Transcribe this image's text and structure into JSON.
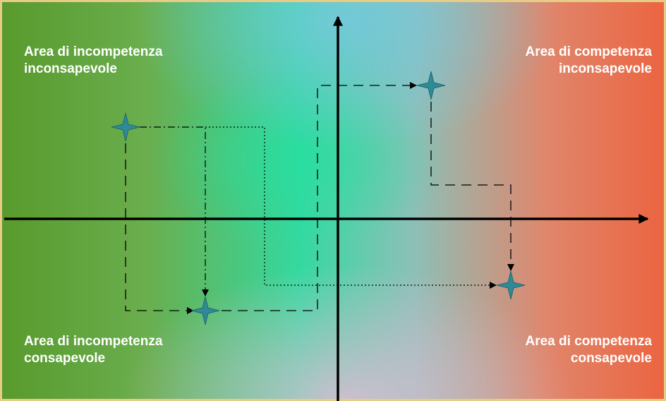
{
  "quadrants": {
    "top_left": {
      "line1": "Area di incompetenza",
      "line2": "inconsapevole"
    },
    "top_right": {
      "line1": "Area di competenza",
      "line2": "inconsapevole"
    },
    "bottom_left": {
      "line1": "Area di incompetenza",
      "line2": "consapevole"
    },
    "bottom_right": {
      "line1": "Area di competenza",
      "line2": "consapevole"
    }
  },
  "colors": {
    "left_green": "#5a9c2a",
    "center_teal": "#2ee0a0",
    "top_center_cyan": "#6fd0d8",
    "right_orange": "#ee6a48",
    "bottom_center_pink": "#d8b8c8",
    "star_fill": "#2f8a96",
    "axis": "#000000",
    "frame": "#e8c87a"
  }
}
